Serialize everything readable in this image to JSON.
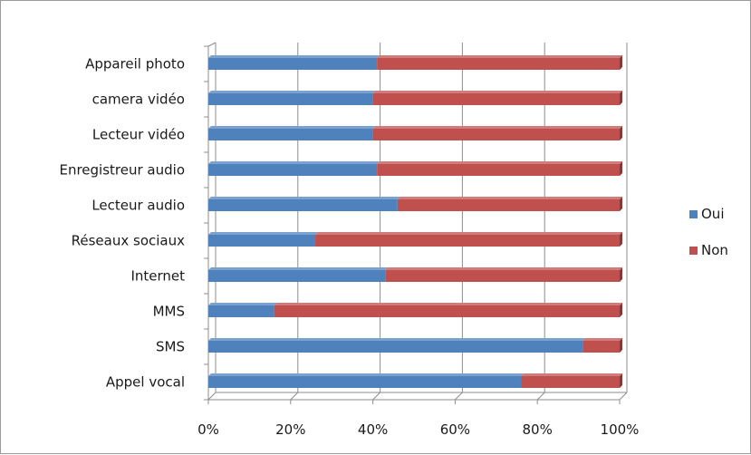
{
  "chart_data": {
    "type": "bar",
    "orientation": "horizontal",
    "stacked": "percent",
    "categories": [
      "Appareil photo",
      "camera vidéo",
      "Lecteur vidéo",
      "Enregistreur audio",
      "Lecteur audio",
      "Réseaux sociaux",
      "Internet",
      "MMS",
      "SMS",
      "Appel vocal"
    ],
    "series": [
      {
        "name": "Oui",
        "color": "#4F81BD",
        "values": [
          41,
          40,
          40,
          41,
          46,
          26,
          43,
          16,
          91,
          76
        ]
      },
      {
        "name": "Non",
        "color": "#C0504D",
        "values": [
          59,
          60,
          60,
          59,
          54,
          74,
          57,
          84,
          9,
          24
        ]
      }
    ],
    "xticks": [
      "0%",
      "20%",
      "40%",
      "60%",
      "80%",
      "100%"
    ],
    "xlim": [
      0,
      100
    ],
    "grid": true,
    "legend": "right"
  }
}
